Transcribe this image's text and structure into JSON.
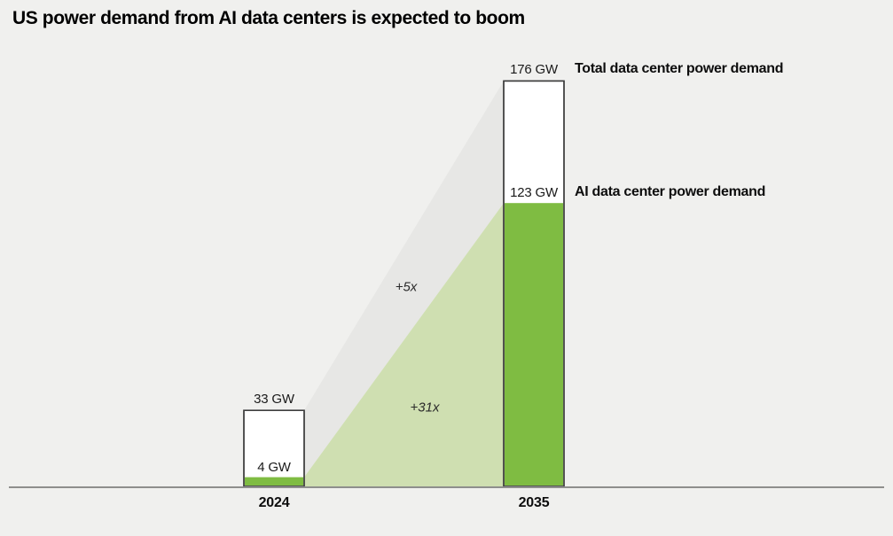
{
  "title": "US power demand from AI data centers is expected to boom",
  "colors": {
    "background": "#f0f0ee",
    "bar_fill": "#ffffff",
    "bar_border": "#3d3d3d",
    "ai_green": "#7fbc42",
    "ai_band": "#cfdfb1",
    "total_band": "#e7e7e5",
    "axis": "#8e8e8c",
    "text": "#111111"
  },
  "chart_data": {
    "type": "bar",
    "title": "US power demand from AI data centers is expected to boom",
    "categories": [
      "2024",
      "2035"
    ],
    "unit": "GW",
    "series": [
      {
        "name": "Total data center power demand",
        "values": [
          33,
          176
        ],
        "labels": [
          "33 GW",
          "176 GW"
        ]
      },
      {
        "name": "AI data center power demand",
        "values": [
          4,
          123
        ],
        "labels": [
          "4 GW",
          "123 GW"
        ]
      }
    ],
    "annotations": {
      "total_multiplier": "+5x",
      "ai_multiplier": "+31x"
    },
    "ylim": [
      0,
      176
    ],
    "grid": false,
    "legend_position": "right-of-2035-bar"
  }
}
